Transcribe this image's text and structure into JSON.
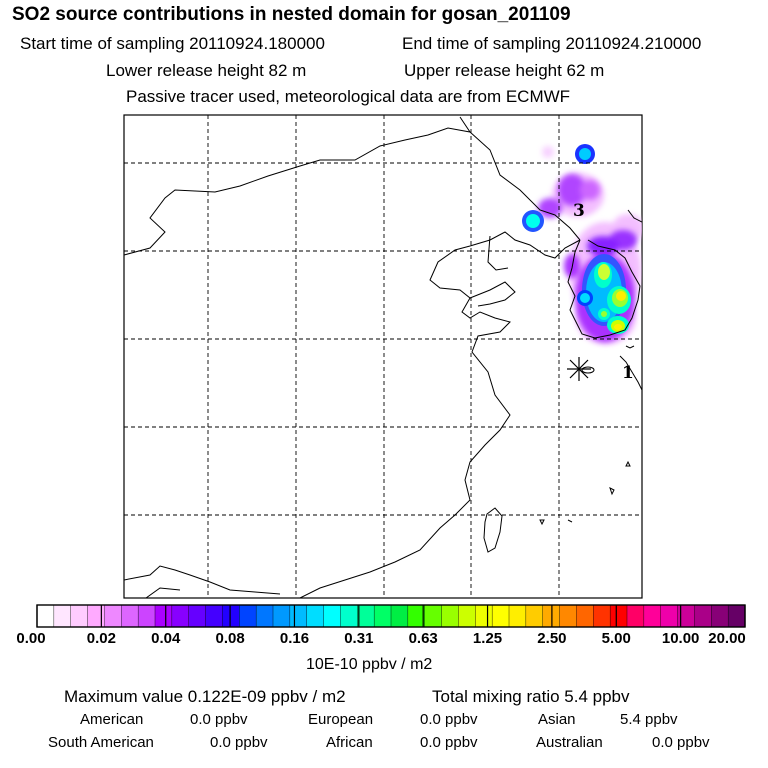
{
  "header": {
    "title": "SO2 source contributions in nested domain for gosan_201109",
    "start_time": "Start time of sampling 20110924.180000",
    "end_time": "End time of sampling 20110924.210000",
    "lower_height": "Lower release height   82 m",
    "upper_height": "Upper release height   62 m",
    "tracer_note": "Passive tracer used, meteorological data are from ECMWF"
  },
  "map": {
    "source_labels": [
      "3",
      "1"
    ],
    "source_marker_icon": "asterisk-icon"
  },
  "colorbar": {
    "ticks": [
      "0.00",
      "0.02",
      "0.04",
      "0.08",
      "0.16",
      "0.31",
      "0.63",
      "1.25",
      "2.50",
      "5.00",
      "10.00",
      "20.00"
    ],
    "colors": [
      "#ffffff",
      "#ffe6ff",
      "#ffccff",
      "#ffaaff",
      "#ee88ff",
      "#dd66ff",
      "#cc44ff",
      "#aa00ff",
      "#8800ff",
      "#6600ff",
      "#4400ff",
      "#2200ff",
      "#0044ff",
      "#0077ff",
      "#0099ff",
      "#00bbff",
      "#00ddff",
      "#00ffff",
      "#00ffcc",
      "#00ff99",
      "#00ff66",
      "#00ee44",
      "#33ff00",
      "#66ff00",
      "#99ff00",
      "#ccff00",
      "#eeff00",
      "#ffff00",
      "#ffee00",
      "#ffcc00",
      "#ffaa00",
      "#ff8800",
      "#ff6600",
      "#ff3300",
      "#ff0000",
      "#ff0066",
      "#ff0099",
      "#ee00aa",
      "#cc0099",
      "#aa0088",
      "#880077",
      "#660066"
    ],
    "units": "10E-10 ppbv / m2"
  },
  "summary": {
    "maximum": "Maximum value  0.122E-09 ppbv / m2",
    "total": "Total mixing ratio       5.4 ppbv",
    "regions": [
      {
        "name": "American",
        "value": "0.0 ppbv"
      },
      {
        "name": "European",
        "value": "0.0 ppbv"
      },
      {
        "name": "Asian",
        "value": "5.4 ppbv"
      },
      {
        "name": "South American",
        "value": "0.0 ppbv"
      },
      {
        "name": "African",
        "value": "0.0 ppbv"
      },
      {
        "name": "Australian",
        "value": "0.0 ppbv"
      }
    ]
  }
}
